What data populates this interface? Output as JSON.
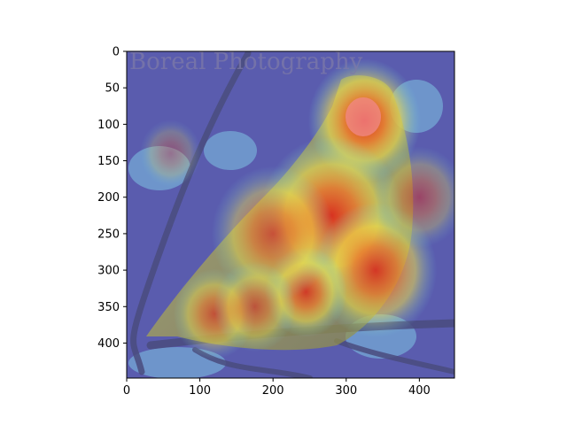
{
  "chart_data": {
    "type": "heatmap",
    "title": "",
    "xlabel": "",
    "ylabel": "",
    "xlim": [
      0,
      448
    ],
    "ylim": [
      448,
      0
    ],
    "xticks": [
      0,
      100,
      200,
      300,
      400
    ],
    "yticks": [
      0,
      50,
      100,
      150,
      200,
      250,
      300,
      350,
      400
    ],
    "colormap": "jet",
    "overlay_alpha": 0.5,
    "grid": false,
    "legend": "none",
    "image_watermark_text": "Boreal Photography",
    "hotspots": [
      {
        "x": 325,
        "y": 95,
        "intensity": 1.0,
        "spread": 55
      },
      {
        "x": 280,
        "y": 225,
        "intensity": 0.95,
        "spread": 70
      },
      {
        "x": 340,
        "y": 300,
        "intensity": 0.9,
        "spread": 60
      },
      {
        "x": 245,
        "y": 330,
        "intensity": 0.85,
        "spread": 40
      },
      {
        "x": 200,
        "y": 250,
        "intensity": 0.7,
        "spread": 60
      },
      {
        "x": 120,
        "y": 360,
        "intensity": 0.65,
        "spread": 40
      },
      {
        "x": 175,
        "y": 350,
        "intensity": 0.6,
        "spread": 40
      },
      {
        "x": 400,
        "y": 200,
        "intensity": 0.5,
        "spread": 45
      },
      {
        "x": 60,
        "y": 140,
        "intensity": 0.35,
        "spread": 30
      }
    ],
    "colors": {
      "low": "#4d4fb0",
      "mid": "#6fd3e0",
      "high": "#f2e14a",
      "peak": "#e8412a"
    }
  }
}
